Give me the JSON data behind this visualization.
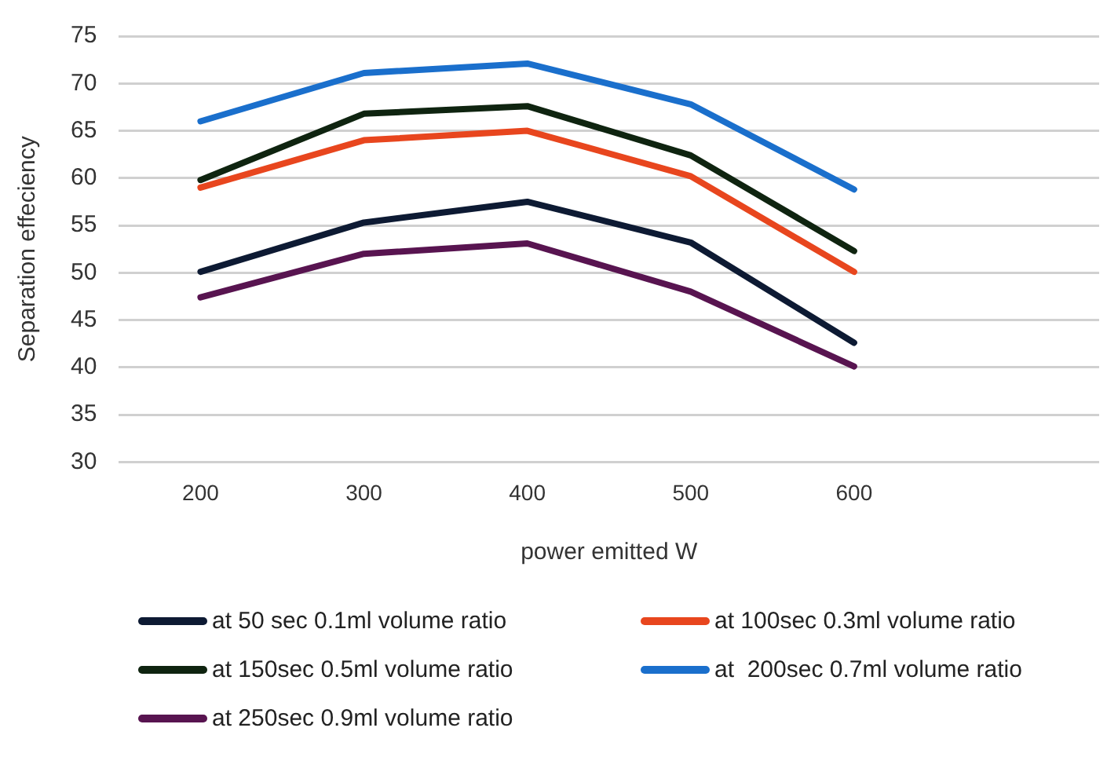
{
  "chart_data": {
    "type": "line",
    "xlabel": "power emitted W",
    "ylabel": "Separation effeciency",
    "categories": [
      "200",
      "300",
      "400",
      "500",
      "600",
      null
    ],
    "ylim": [
      30,
      75
    ],
    "yticks": [
      30,
      35,
      40,
      45,
      50,
      55,
      60,
      65,
      70,
      75
    ],
    "grid": "y",
    "legend": "bottom",
    "marker": "none",
    "line_style": "solid",
    "series": [
      {
        "name": "at 50 sec 0.1ml volume ratio",
        "color": "#0d1a33",
        "values": [
          50.1,
          55.3,
          57.5,
          53.2,
          42.6,
          null
        ]
      },
      {
        "name": "at 100sec 0.3ml volume ratio",
        "color": "#e8461e",
        "values": [
          59.0,
          64.0,
          65.0,
          60.2,
          50.1,
          null
        ]
      },
      {
        "name": "at 150sec 0.5ml volume ratio",
        "color": "#0f2410",
        "values": [
          59.8,
          66.8,
          67.6,
          62.4,
          52.3,
          null
        ]
      },
      {
        "name": "at  200sec 0.7ml volume ratio",
        "color": "#1a6fcc",
        "values": [
          66.0,
          71.1,
          72.1,
          67.8,
          58.8,
          null
        ]
      },
      {
        "name": "at 250sec 0.9ml volume ratio",
        "color": "#581450",
        "values": [
          47.4,
          52.0,
          53.1,
          48.0,
          40.1,
          null
        ]
      }
    ]
  }
}
